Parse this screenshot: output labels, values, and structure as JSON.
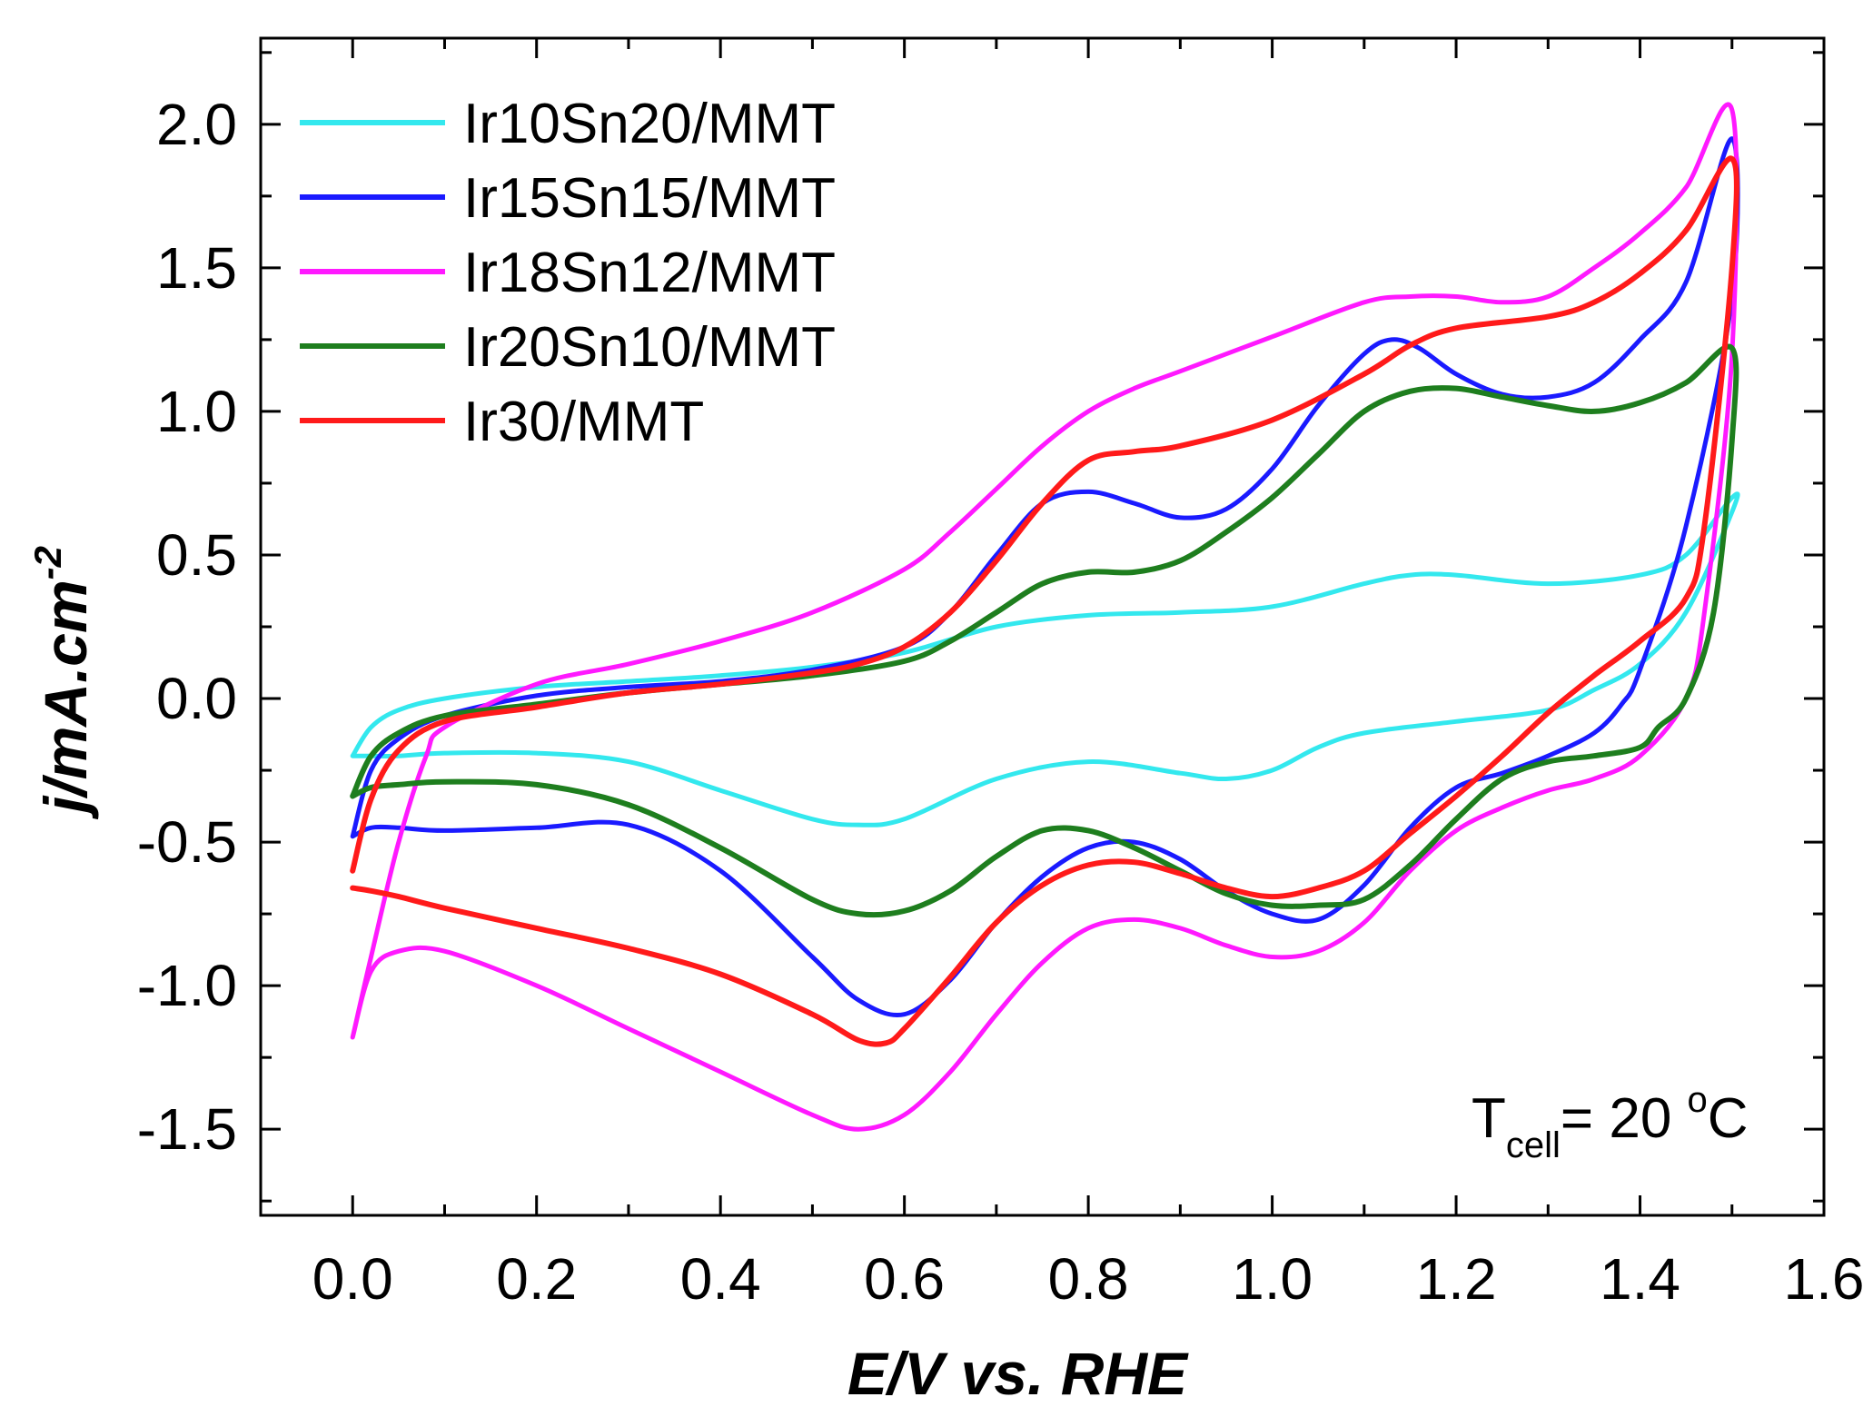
{
  "chart_data": {
    "type": "line",
    "title": "",
    "xlabel": "E/V vs. RHE",
    "ylabel_main": "j/mA.cm",
    "ylabel_sup": "-2",
    "xlim": [
      -0.1,
      1.6
    ],
    "ylim": [
      -1.8,
      2.3
    ],
    "x_ticks": [
      0.0,
      0.2,
      0.4,
      0.6,
      0.8,
      1.0,
      1.2,
      1.4,
      1.6
    ],
    "x_tick_labels": [
      "0.0",
      "0.2",
      "0.4",
      "0.6",
      "0.8",
      "1.0",
      "1.2",
      "1.4",
      "1.6"
    ],
    "y_ticks": [
      -1.5,
      -1.0,
      -0.5,
      0.0,
      0.5,
      1.0,
      1.5,
      2.0
    ],
    "y_tick_labels": [
      "-1.5",
      "-1.0",
      "-0.5",
      "0.0",
      "0.5",
      "1.0",
      "1.5",
      "2.0"
    ],
    "grid": false,
    "legend_position": "top-left",
    "annotation": {
      "main": "T",
      "sub": "cell",
      "rest": "= 20 ",
      "sup": "o",
      "unit": "C"
    },
    "series": [
      {
        "name": "Ir10Sn20/MMT",
        "color": "#33e8ee",
        "x": [
          0.0,
          0.02,
          0.05,
          0.1,
          0.2,
          0.3,
          0.4,
          0.5,
          0.6,
          0.7,
          0.8,
          0.9,
          1.0,
          1.1,
          1.15,
          1.2,
          1.3,
          1.4,
          1.45,
          1.5,
          1.5,
          1.45,
          1.4,
          1.35,
          1.3,
          1.2,
          1.1,
          1.05,
          1.0,
          0.95,
          0.9,
          0.8,
          0.7,
          0.6,
          0.55,
          0.5,
          0.4,
          0.3,
          0.2,
          0.1,
          0.05,
          0.02,
          0.0
        ],
        "y": [
          -0.2,
          -0.1,
          -0.04,
          0.0,
          0.04,
          0.06,
          0.08,
          0.11,
          0.16,
          0.25,
          0.29,
          0.3,
          0.32,
          0.4,
          0.43,
          0.43,
          0.4,
          0.43,
          0.5,
          0.7,
          0.65,
          0.3,
          0.12,
          0.03,
          -0.04,
          -0.08,
          -0.12,
          -0.17,
          -0.25,
          -0.28,
          -0.26,
          -0.22,
          -0.28,
          -0.42,
          -0.44,
          -0.42,
          -0.32,
          -0.22,
          -0.19,
          -0.19,
          -0.2,
          -0.2,
          -0.2
        ]
      },
      {
        "name": "Ir15Sn15/MMT",
        "color": "#1a1aff",
        "x": [
          0.0,
          0.02,
          0.05,
          0.1,
          0.2,
          0.3,
          0.4,
          0.5,
          0.6,
          0.65,
          0.7,
          0.75,
          0.8,
          0.85,
          0.9,
          0.95,
          1.0,
          1.05,
          1.1,
          1.13,
          1.16,
          1.2,
          1.25,
          1.3,
          1.35,
          1.4,
          1.45,
          1.5,
          1.5,
          1.45,
          1.4,
          1.38,
          1.35,
          1.3,
          1.25,
          1.2,
          1.15,
          1.1,
          1.05,
          1.0,
          0.95,
          0.9,
          0.85,
          0.8,
          0.75,
          0.7,
          0.65,
          0.6,
          0.55,
          0.5,
          0.4,
          0.3,
          0.2,
          0.1,
          0.05,
          0.02,
          0.0
        ],
        "y": [
          -0.48,
          -0.25,
          -0.14,
          -0.06,
          0.01,
          0.04,
          0.06,
          0.1,
          0.18,
          0.3,
          0.5,
          0.68,
          0.72,
          0.68,
          0.63,
          0.66,
          0.8,
          1.02,
          1.2,
          1.25,
          1.22,
          1.13,
          1.06,
          1.05,
          1.1,
          1.25,
          1.45,
          1.95,
          1.4,
          0.6,
          0.1,
          -0.02,
          -0.12,
          -0.2,
          -0.26,
          -0.31,
          -0.45,
          -0.65,
          -0.77,
          -0.75,
          -0.67,
          -0.56,
          -0.5,
          -0.52,
          -0.62,
          -0.78,
          -0.98,
          -1.1,
          -1.05,
          -0.9,
          -0.6,
          -0.44,
          -0.45,
          -0.46,
          -0.45,
          -0.45,
          -0.48
        ]
      },
      {
        "name": "Ir18Sn12/MMT",
        "color": "#ff19ff",
        "x": [
          0.0,
          0.02,
          0.05,
          0.08,
          0.1,
          0.2,
          0.3,
          0.4,
          0.5,
          0.6,
          0.65,
          0.7,
          0.75,
          0.8,
          0.85,
          0.9,
          1.0,
          1.1,
          1.15,
          1.2,
          1.25,
          1.3,
          1.35,
          1.4,
          1.45,
          1.5,
          1.5,
          1.47,
          1.45,
          1.4,
          1.35,
          1.3,
          1.25,
          1.2,
          1.15,
          1.1,
          1.05,
          1.0,
          0.95,
          0.9,
          0.85,
          0.8,
          0.75,
          0.7,
          0.65,
          0.6,
          0.55,
          0.5,
          0.4,
          0.3,
          0.2,
          0.1,
          0.05,
          0.02,
          0.0
        ],
        "y": [
          -1.18,
          -0.9,
          -0.5,
          -0.2,
          -0.1,
          0.05,
          0.12,
          0.2,
          0.3,
          0.45,
          0.58,
          0.73,
          0.88,
          1.0,
          1.08,
          1.14,
          1.26,
          1.38,
          1.4,
          1.4,
          1.38,
          1.4,
          1.5,
          1.62,
          1.78,
          2.05,
          1.2,
          0.3,
          0.0,
          -0.2,
          -0.28,
          -0.32,
          -0.38,
          -0.46,
          -0.6,
          -0.78,
          -0.88,
          -0.9,
          -0.86,
          -0.8,
          -0.77,
          -0.8,
          -0.92,
          -1.1,
          -1.3,
          -1.45,
          -1.5,
          -1.45,
          -1.3,
          -1.15,
          -1.0,
          -0.88,
          -0.88,
          -0.95,
          -1.18
        ]
      },
      {
        "name": "Ir20Sn10/MMT",
        "color": "#1e7e1e",
        "x": [
          0.0,
          0.02,
          0.05,
          0.1,
          0.2,
          0.3,
          0.4,
          0.5,
          0.6,
          0.65,
          0.7,
          0.75,
          0.8,
          0.85,
          0.9,
          0.95,
          1.0,
          1.05,
          1.1,
          1.15,
          1.2,
          1.25,
          1.3,
          1.35,
          1.4,
          1.45,
          1.5,
          1.5,
          1.48,
          1.45,
          1.42,
          1.4,
          1.35,
          1.3,
          1.25,
          1.2,
          1.15,
          1.1,
          1.05,
          1.0,
          0.95,
          0.9,
          0.85,
          0.8,
          0.75,
          0.7,
          0.65,
          0.6,
          0.55,
          0.5,
          0.4,
          0.3,
          0.2,
          0.1,
          0.05,
          0.02,
          0.0
        ],
        "y": [
          -0.34,
          -0.2,
          -0.12,
          -0.06,
          -0.02,
          0.02,
          0.05,
          0.08,
          0.13,
          0.2,
          0.3,
          0.4,
          0.44,
          0.44,
          0.48,
          0.58,
          0.7,
          0.85,
          1.0,
          1.07,
          1.08,
          1.05,
          1.02,
          1.0,
          1.03,
          1.1,
          1.22,
          0.9,
          0.3,
          0.0,
          -0.1,
          -0.17,
          -0.2,
          -0.22,
          -0.28,
          -0.42,
          -0.58,
          -0.7,
          -0.72,
          -0.72,
          -0.68,
          -0.6,
          -0.52,
          -0.46,
          -0.46,
          -0.55,
          -0.67,
          -0.74,
          -0.75,
          -0.7,
          -0.52,
          -0.37,
          -0.3,
          -0.29,
          -0.3,
          -0.31,
          -0.34
        ]
      },
      {
        "name": "Ir30/MMT",
        "color": "#ff1a1a",
        "x": [
          0.0,
          0.02,
          0.05,
          0.1,
          0.2,
          0.3,
          0.4,
          0.5,
          0.55,
          0.6,
          0.65,
          0.7,
          0.75,
          0.8,
          0.85,
          0.9,
          1.0,
          1.1,
          1.15,
          1.2,
          1.3,
          1.35,
          1.4,
          1.45,
          1.5,
          1.5,
          1.47,
          1.45,
          1.4,
          1.35,
          1.3,
          1.25,
          1.2,
          1.15,
          1.1,
          1.05,
          1.0,
          0.95,
          0.9,
          0.85,
          0.8,
          0.75,
          0.7,
          0.65,
          0.6,
          0.58,
          0.55,
          0.5,
          0.4,
          0.3,
          0.2,
          0.1,
          0.05,
          0.02,
          0.0
        ],
        "y": [
          -0.6,
          -0.35,
          -0.18,
          -0.08,
          -0.03,
          0.02,
          0.05,
          0.09,
          0.12,
          0.18,
          0.3,
          0.48,
          0.68,
          0.83,
          0.86,
          0.88,
          0.97,
          1.13,
          1.23,
          1.29,
          1.33,
          1.38,
          1.48,
          1.63,
          1.88,
          1.5,
          0.6,
          0.35,
          0.2,
          0.08,
          -0.05,
          -0.2,
          -0.34,
          -0.47,
          -0.6,
          -0.66,
          -0.69,
          -0.66,
          -0.61,
          -0.57,
          -0.58,
          -0.65,
          -0.78,
          -0.97,
          -1.15,
          -1.2,
          -1.19,
          -1.1,
          -0.96,
          -0.87,
          -0.8,
          -0.73,
          -0.69,
          -0.67,
          -0.66
        ]
      }
    ]
  }
}
